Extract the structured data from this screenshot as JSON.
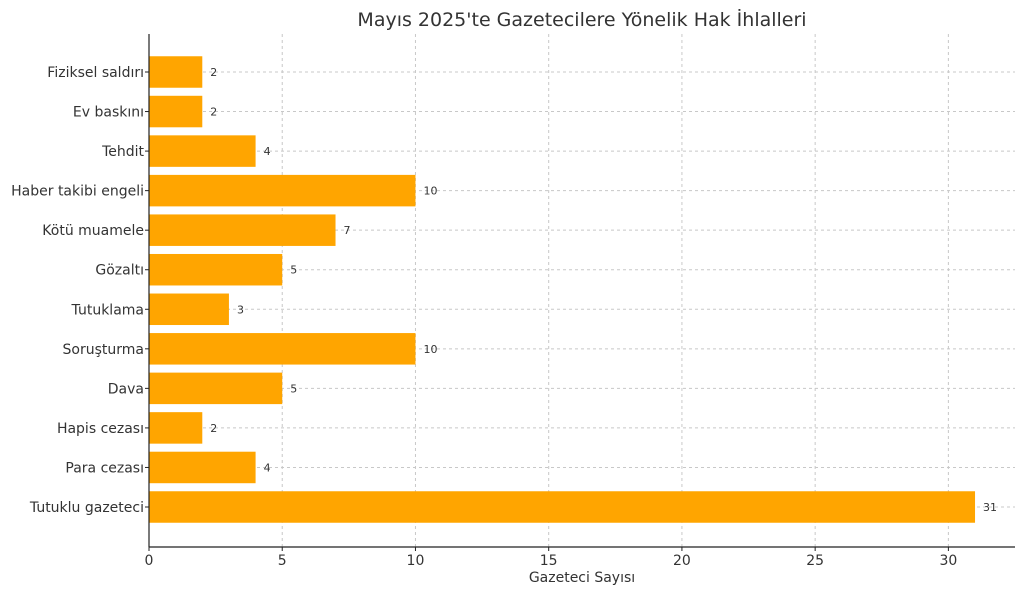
{
  "chart_data": {
    "type": "bar",
    "orientation": "horizontal",
    "title": "Mayıs 2025'te Gazetecilere Yönelik Hak İhlalleri",
    "xlabel": "Gazeteci Sayısı",
    "ylabel": "",
    "categories": [
      "Fiziksel saldırı",
      "Ev baskını",
      "Tehdit",
      "Haber takibi engeli",
      "Kötü muamele",
      "Gözaltı",
      "Tutuklama",
      "Soruşturma",
      "Dava",
      "Hapis cezası",
      "Para cezası",
      "Tutuklu gazeteci"
    ],
    "values": [
      2,
      2,
      4,
      10,
      7,
      5,
      3,
      10,
      5,
      2,
      4,
      31
    ],
    "xlim": [
      0,
      32.5
    ],
    "xticks": [
      0,
      5,
      10,
      15,
      20,
      25,
      30
    ],
    "grid": true,
    "bar_color": "#FFA500",
    "show_data_labels": true
  }
}
